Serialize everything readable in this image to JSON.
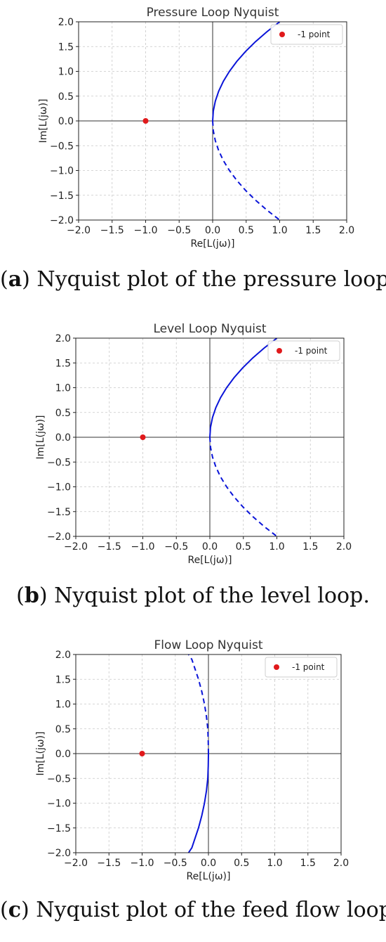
{
  "panels": [
    {
      "caption": {
        "open": "(",
        "letter": "a",
        "text": ") Nyquist plot of the pressure loop."
      },
      "chart_data": {
        "type": "line",
        "title": "Pressure Loop Nyquist",
        "xlabel": "Re[L(jω)]",
        "ylabel": "Im[L(jω)]",
        "xlim": [
          -2,
          2
        ],
        "ylim": [
          -2,
          2
        ],
        "xticks": [
          "−2.0",
          "−1.5",
          "−1.0",
          "−0.5",
          "0.0",
          "0.5",
          "1.0",
          "1.5",
          "2.0"
        ],
        "yticks": [
          "2.0",
          "1.5",
          "1.0",
          "0.5",
          "0.0",
          "−0.5",
          "−1.0",
          "−1.5",
          "−2.0"
        ],
        "grid": true,
        "legend": {
          "position": "top-right",
          "entries": [
            "-1 point"
          ]
        },
        "point": {
          "x": -1,
          "y": 0,
          "color": "#e0191b"
        },
        "series": [
          {
            "style": "solid",
            "color": "#0a14d8",
            "x": [
              0,
              0.01,
              0.04,
              0.09,
              0.16,
              0.25,
              0.36,
              0.49,
              0.64,
              0.81,
              1.0
            ],
            "y": [
              0,
              0.2,
              0.4,
              0.6,
              0.8,
              1.0,
              1.2,
              1.4,
              1.6,
              1.8,
              2.0
            ]
          },
          {
            "style": "dashed",
            "color": "#0a14d8",
            "x": [
              0,
              0.01,
              0.04,
              0.09,
              0.16,
              0.25,
              0.36,
              0.49,
              0.64,
              0.81,
              1.0
            ],
            "y": [
              0,
              -0.2,
              -0.4,
              -0.6,
              -0.8,
              -1.0,
              -1.2,
              -1.4,
              -1.6,
              -1.8,
              -2.0
            ]
          }
        ]
      }
    },
    {
      "caption": {
        "open": "(",
        "letter": "b",
        "text": ") Nyquist plot of the level loop."
      },
      "chart_data": {
        "type": "line",
        "title": "Level Loop Nyquist",
        "xlabel": "Re[L(jω)]",
        "ylabel": "Im[L(jω)]",
        "xlim": [
          -2,
          2
        ],
        "ylim": [
          -2,
          2
        ],
        "xticks": [
          "−2.0",
          "−1.5",
          "−1.0",
          "−0.5",
          "0.0",
          "0.5",
          "1.0",
          "1.5",
          "2.0"
        ],
        "yticks": [
          "2.0",
          "1.5",
          "1.0",
          "0.5",
          "0.0",
          "−0.5",
          "−1.0",
          "−1.5",
          "−2.0"
        ],
        "grid": true,
        "legend": {
          "position": "top-right",
          "entries": [
            "-1 point"
          ]
        },
        "point": {
          "x": -1,
          "y": 0,
          "color": "#e0191b"
        },
        "series": [
          {
            "style": "solid",
            "color": "#0a14d8",
            "x": [
              0,
              0.01,
              0.04,
              0.09,
              0.16,
              0.25,
              0.36,
              0.49,
              0.64,
              0.81,
              1.0
            ],
            "y": [
              0,
              0.2,
              0.4,
              0.6,
              0.8,
              1.0,
              1.2,
              1.4,
              1.6,
              1.8,
              2.0
            ]
          },
          {
            "style": "dashed",
            "color": "#0a14d8",
            "x": [
              0,
              0.01,
              0.04,
              0.09,
              0.16,
              0.25,
              0.36,
              0.49,
              0.64,
              0.81,
              1.0
            ],
            "y": [
              0,
              -0.2,
              -0.4,
              -0.6,
              -0.8,
              -1.0,
              -1.2,
              -1.4,
              -1.6,
              -1.8,
              -2.0
            ]
          }
        ]
      }
    },
    {
      "caption": {
        "open": "(",
        "letter": "c",
        "text": ") Nyquist plot of the feed flow loop."
      },
      "chart_data": {
        "type": "line",
        "title": "Flow Loop Nyquist",
        "xlabel": "Re[L(jω)]",
        "ylabel": "Im[L(jω)]",
        "xlim": [
          -2,
          2
        ],
        "ylim": [
          -2,
          2
        ],
        "xticks": [
          "−2.0",
          "−1.5",
          "−1.0",
          "−0.5",
          "0.0",
          "0.5",
          "1.0",
          "1.5",
          "2.0"
        ],
        "yticks": [
          "2.0",
          "1.5",
          "1.0",
          "0.5",
          "0.0",
          "−0.5",
          "−1.0",
          "−1.5",
          "−2.0"
        ],
        "grid": true,
        "legend": {
          "position": "top-right",
          "entries": [
            "-1 point"
          ]
        },
        "point": {
          "x": -1,
          "y": 0,
          "color": "#e0191b"
        },
        "series": [
          {
            "style": "dashed",
            "color": "#0a14d8",
            "x": [
              0,
              -0.003,
              -0.01,
              -0.03,
              -0.06,
              -0.1,
              -0.15,
              -0.2,
              -0.25,
              -0.3
            ],
            "y": [
              0,
              0.25,
              0.5,
              0.75,
              1.0,
              1.25,
              1.5,
              1.7,
              1.9,
              2.0
            ]
          },
          {
            "style": "solid",
            "color": "#0a14d8",
            "x": [
              0,
              -0.003,
              -0.01,
              -0.03,
              -0.06,
              -0.1,
              -0.15,
              -0.2,
              -0.25,
              -0.3
            ],
            "y": [
              0,
              -0.25,
              -0.5,
              -0.75,
              -1.0,
              -1.25,
              -1.5,
              -1.7,
              -1.9,
              -2.0
            ]
          }
        ]
      }
    }
  ]
}
